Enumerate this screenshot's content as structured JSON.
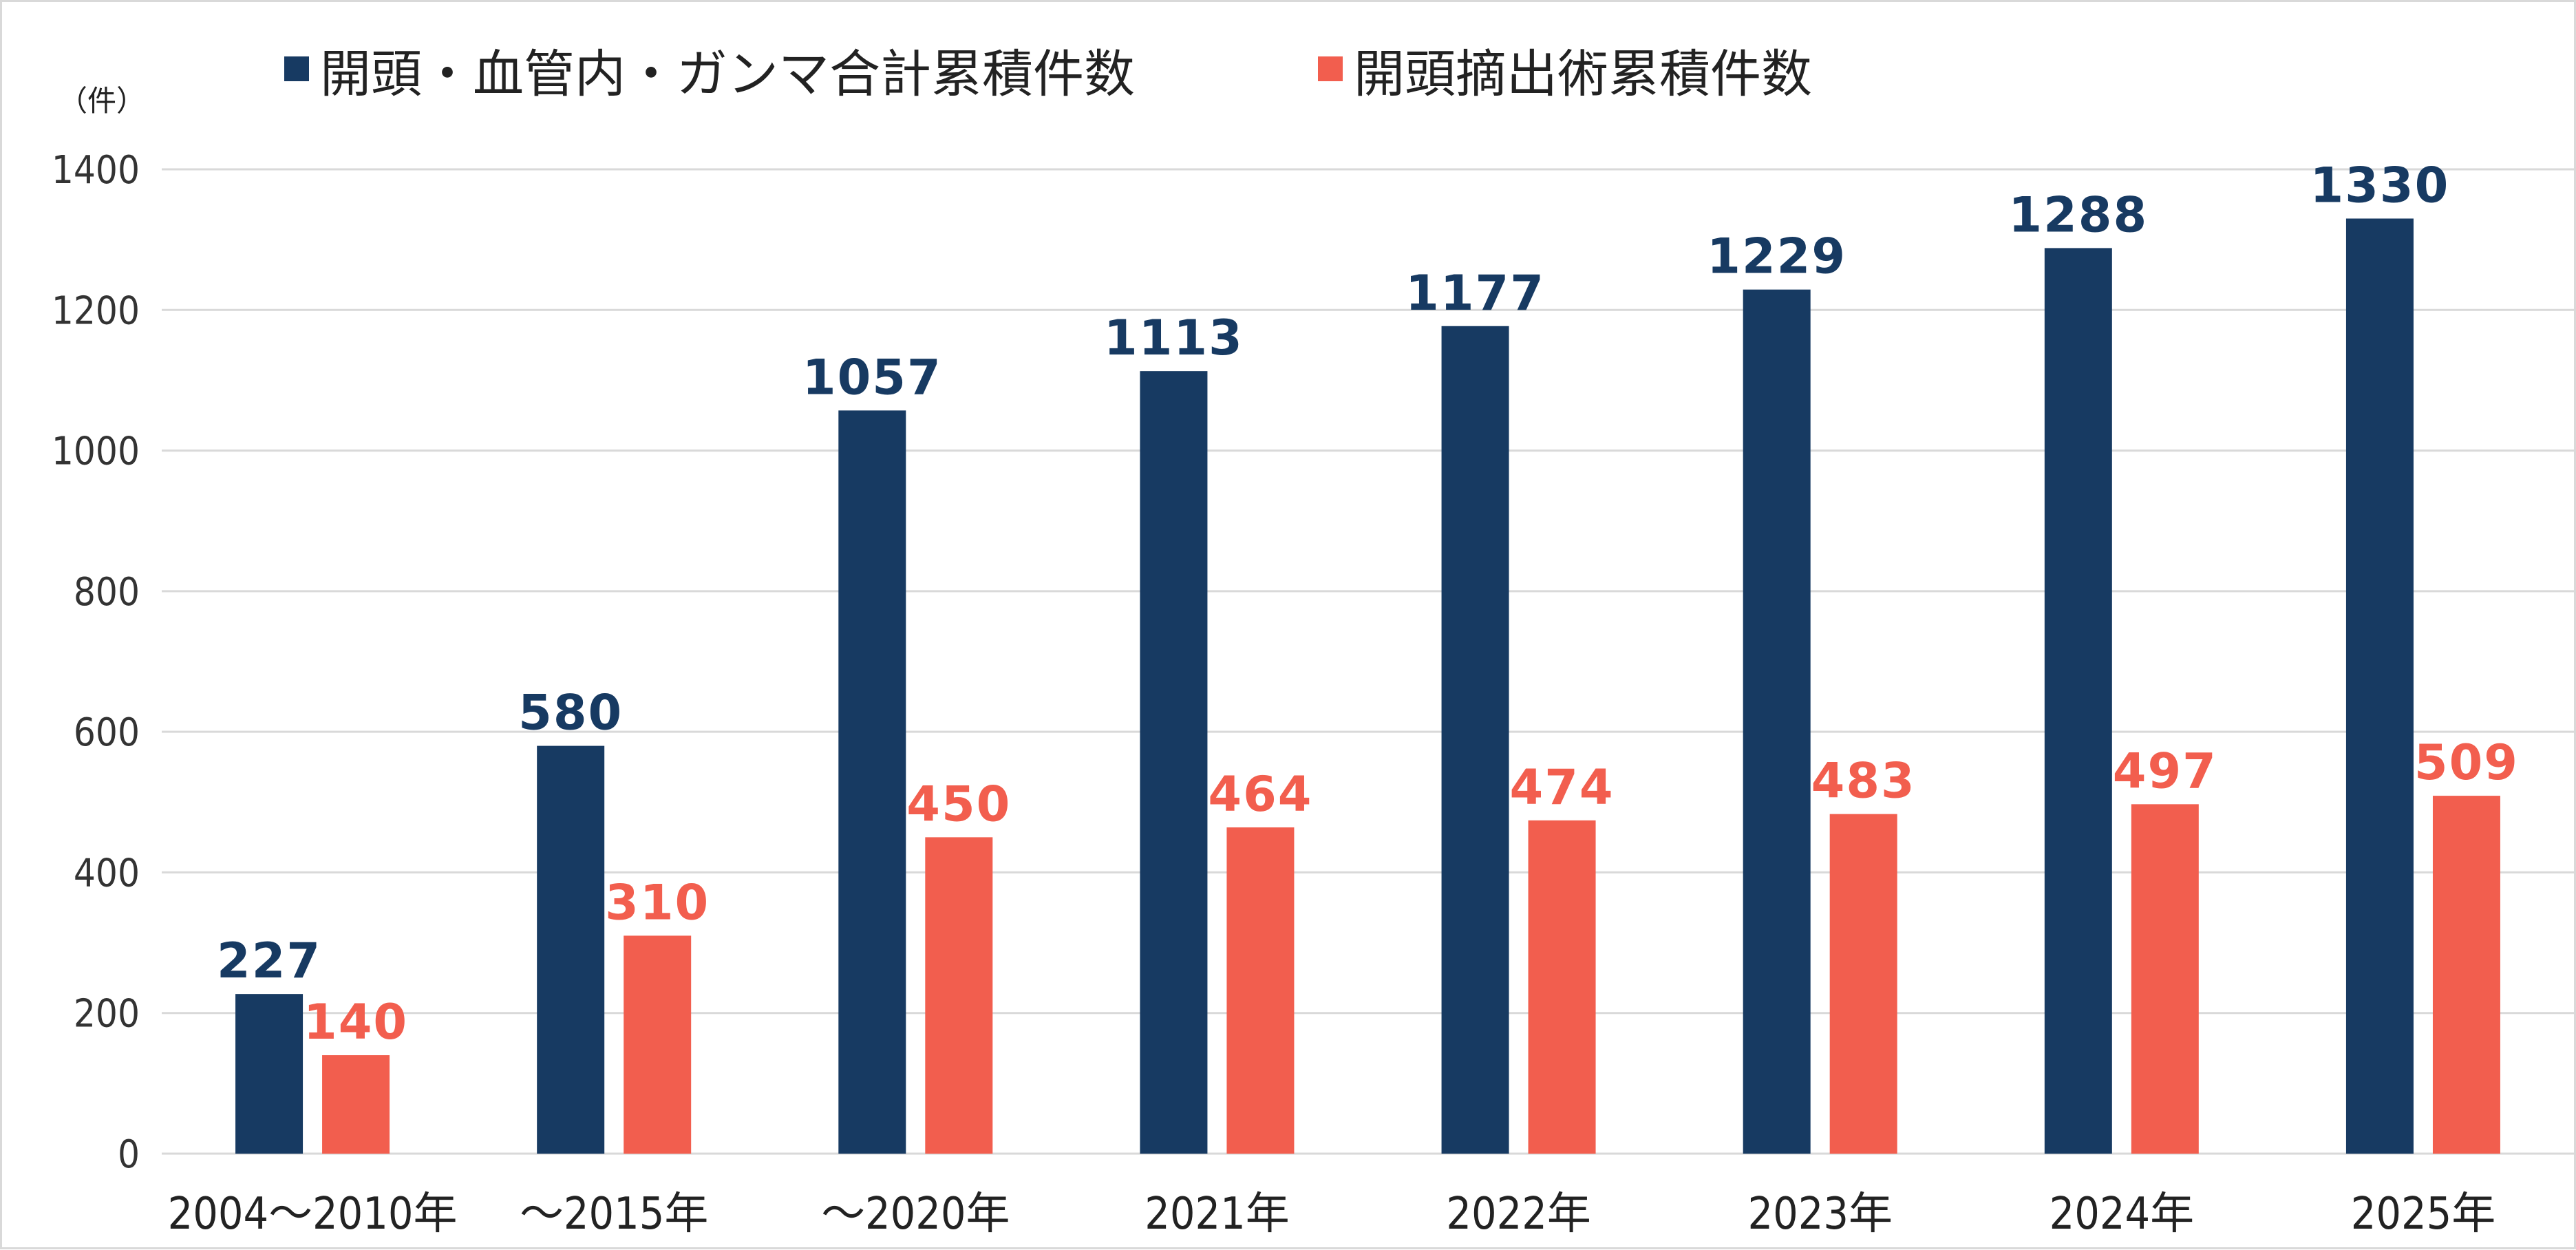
{
  "chart_data": {
    "type": "bar",
    "unit_label": "（件）",
    "categories": [
      "2004～2010年",
      "～2015年",
      "～2020年",
      "2021年",
      "2022年",
      "2023年",
      "2024年",
      "2025年"
    ],
    "series": [
      {
        "name": "開頭・血管内・ガンマ合計累積件数",
        "color": "#173a62",
        "values": [
          227,
          580,
          1057,
          1113,
          1177,
          1229,
          1288,
          1330
        ]
      },
      {
        "name": "開頭摘出術累積件数",
        "color": "#f25e4e",
        "values": [
          140,
          310,
          450,
          464,
          474,
          483,
          497,
          509
        ]
      }
    ],
    "ylim": [
      0,
      1400
    ],
    "yticks": [
      0,
      200,
      400,
      600,
      800,
      1000,
      1200,
      1400
    ],
    "grid": true,
    "legend": "top",
    "xlabel": "",
    "ylabel": ""
  }
}
